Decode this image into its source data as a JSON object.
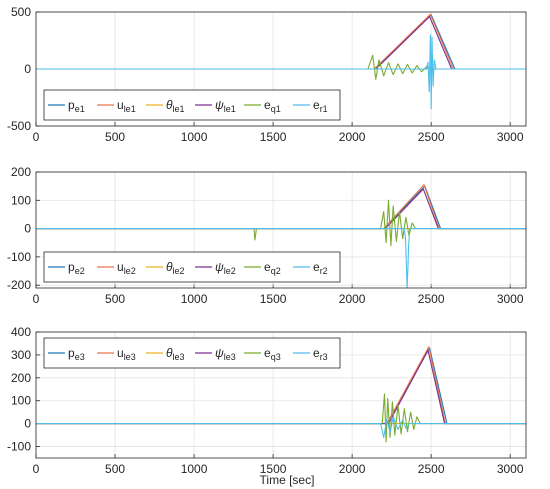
{
  "figure": {
    "xlabel": "Time [sec]"
  },
  "colors": {
    "p": "#1f77b4",
    "u": "#e8734a",
    "theta": "#ecb01f",
    "psi": "#7e2f8e",
    "eq": "#77ac30",
    "er": "#4dbeee",
    "axis": "#262626",
    "grid": "#e3e3e3"
  },
  "chart_data": [
    {
      "type": "line",
      "xlim": [
        0,
        3100
      ],
      "ylim": [
        -500,
        500
      ],
      "xticks": [
        "0",
        "500",
        "1000",
        "1500",
        "2000",
        "2500",
        "3000"
      ],
      "yticks": [
        "500",
        "0",
        "-500"
      ],
      "grid": true,
      "legend_placement": "bottom-left",
      "series": [
        {
          "name": "p_e1",
          "base": "p",
          "sub": "e1",
          "color_key": "p",
          "x": [
            0,
            2140,
            2500,
            2650,
            3100
          ],
          "y": [
            0,
            0,
            475,
            0,
            0
          ]
        },
        {
          "name": "u_le1",
          "base": "u",
          "sub": "le1",
          "color_key": "u",
          "x": [
            0,
            2140,
            2495,
            2640,
            3100
          ],
          "y": [
            0,
            0,
            480,
            0,
            0
          ]
        },
        {
          "name": "θ_le1",
          "base": "θ",
          "sub": "le1",
          "color_key": "theta",
          "x": [
            0,
            3100
          ],
          "y": [
            0,
            0
          ]
        },
        {
          "name": "ψ_le1",
          "base": "ψ",
          "sub": "le1",
          "color_key": "psi",
          "x": [
            0,
            2150,
            2490,
            2630,
            3100
          ],
          "y": [
            0,
            0,
            460,
            0,
            0
          ]
        },
        {
          "name": "e_q1",
          "base": "e",
          "sub": "q1",
          "color_key": "eq",
          "x": [
            0,
            2100,
            2130,
            2150,
            2170,
            2200,
            2230,
            2260,
            2290,
            2320,
            2350,
            2380,
            2410,
            2440,
            2470,
            2500,
            3100
          ],
          "y": [
            0,
            0,
            120,
            -90,
            80,
            -60,
            55,
            -50,
            45,
            -40,
            40,
            -35,
            30,
            -25,
            20,
            0,
            0
          ]
        },
        {
          "name": "e_r1",
          "base": "e",
          "sub": "r1",
          "color_key": "er",
          "x": [
            0,
            2470,
            2480,
            2488,
            2495,
            2500,
            2505,
            2512,
            2520,
            2530,
            3100
          ],
          "y": [
            0,
            0,
            60,
            -200,
            300,
            -350,
            280,
            -150,
            80,
            0,
            0
          ]
        }
      ]
    },
    {
      "type": "line",
      "xlim": [
        0,
        3100
      ],
      "ylim": [
        -210,
        200
      ],
      "xticks": [
        "0",
        "500",
        "1000",
        "1500",
        "2000",
        "2500",
        "3000"
      ],
      "yticks": [
        "200",
        "100",
        "0",
        "-100",
        "-200"
      ],
      "grid": true,
      "legend_placement": "bottom-left",
      "series": [
        {
          "name": "p_e2",
          "base": "p",
          "sub": "e2",
          "color_key": "p",
          "x": [
            0,
            2200,
            2460,
            2560,
            3100
          ],
          "y": [
            0,
            0,
            150,
            0,
            0
          ]
        },
        {
          "name": "u_le2",
          "base": "u",
          "sub": "le2",
          "color_key": "u",
          "x": [
            0,
            2200,
            2455,
            2550,
            3100
          ],
          "y": [
            0,
            0,
            155,
            0,
            0
          ]
        },
        {
          "name": "θ_le2",
          "base": "θ",
          "sub": "le2",
          "color_key": "theta",
          "x": [
            0,
            3100
          ],
          "y": [
            0,
            0
          ]
        },
        {
          "name": "ψ_le2",
          "base": "ψ",
          "sub": "le2",
          "color_key": "psi",
          "x": [
            0,
            2210,
            2450,
            2545,
            3100
          ],
          "y": [
            0,
            0,
            140,
            0,
            0
          ]
        },
        {
          "name": "e_q2",
          "base": "e",
          "sub": "q2",
          "color_key": "eq",
          "x": [
            0,
            1380,
            1385,
            1395,
            2180,
            2200,
            2215,
            2230,
            2245,
            2260,
            2280,
            2300,
            2320,
            2340,
            2360,
            2380,
            2400,
            3100
          ],
          "y": [
            0,
            0,
            -40,
            0,
            0,
            60,
            -50,
            100,
            -60,
            80,
            -45,
            60,
            -35,
            40,
            -25,
            20,
            0,
            0
          ]
        },
        {
          "name": "e_r2",
          "base": "e",
          "sub": "r2",
          "color_key": "er",
          "x": [
            0,
            2330,
            2338,
            2343,
            2348,
            2352,
            2357,
            2365,
            3100
          ],
          "y": [
            0,
            0,
            -40,
            -120,
            -210,
            -150,
            -60,
            0,
            0
          ]
        }
      ]
    },
    {
      "type": "line",
      "xlim": [
        0,
        3100
      ],
      "ylim": [
        -150,
        400
      ],
      "xticks": [
        "0",
        "500",
        "1000",
        "1500",
        "2000",
        "2500",
        "3000"
      ],
      "yticks": [
        "400",
        "300",
        "200",
        "100",
        "0",
        "-100"
      ],
      "grid": true,
      "legend_placement": "top-left",
      "series": [
        {
          "name": "p_e3",
          "base": "p",
          "sub": "e3",
          "color_key": "p",
          "x": [
            0,
            2220,
            2490,
            2600,
            3100
          ],
          "y": [
            0,
            0,
            330,
            0,
            0
          ]
        },
        {
          "name": "u_le3",
          "base": "u",
          "sub": "le3",
          "color_key": "u",
          "x": [
            0,
            2220,
            2485,
            2590,
            3100
          ],
          "y": [
            0,
            0,
            335,
            0,
            0
          ]
        },
        {
          "name": "θ_le3",
          "base": "θ",
          "sub": "le3",
          "color_key": "theta",
          "x": [
            0,
            3100
          ],
          "y": [
            0,
            0
          ]
        },
        {
          "name": "ψ_le3",
          "base": "ψ",
          "sub": "le3",
          "color_key": "psi",
          "x": [
            0,
            2230,
            2480,
            2585,
            3100
          ],
          "y": [
            0,
            0,
            320,
            0,
            0
          ]
        },
        {
          "name": "e_q3",
          "base": "e",
          "sub": "q3",
          "color_key": "eq",
          "x": [
            0,
            2190,
            2205,
            2215,
            2225,
            2240,
            2255,
            2270,
            2290,
            2310,
            2330,
            2350,
            2370,
            2390,
            2410,
            2430,
            3100
          ],
          "y": [
            0,
            0,
            130,
            -80,
            110,
            -60,
            95,
            -50,
            80,
            -45,
            65,
            -35,
            50,
            -25,
            30,
            0,
            0
          ]
        },
        {
          "name": "e_r3",
          "base": "e",
          "sub": "r3",
          "color_key": "er",
          "x": [
            0,
            2180,
            2200,
            2220,
            2240,
            2260,
            2290,
            2320,
            2340,
            2360,
            3100
          ],
          "y": [
            0,
            0,
            -60,
            20,
            -40,
            30,
            -25,
            15,
            -20,
            0,
            0
          ]
        }
      ]
    }
  ]
}
